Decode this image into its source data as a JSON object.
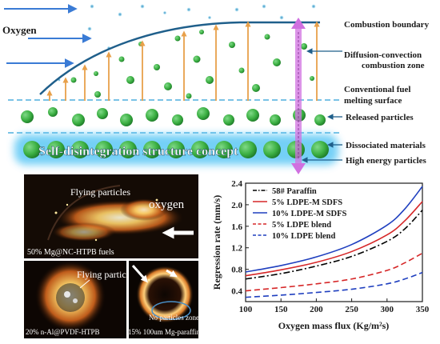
{
  "top_diagram": {
    "oxygen_label": "Oxygen",
    "labels": {
      "combustion_boundary": "Combustion boundary",
      "diffusion_zone_line1": "Diffusion-convection",
      "diffusion_zone_line2": "combustion zone",
      "melting_surface_line1": "Conventional fuel",
      "melting_surface_line2": "melting surface",
      "released_particles": "Released particles",
      "dissociated_materials": "Dissociated materials",
      "high_energy_particles": "High energy particles"
    },
    "concept_text": "Self-disintegration structure concept",
    "colors": {
      "particle_green": "#3cb043",
      "arrow_orange": "#e8a04a",
      "boundary_blue": "#1f5f8b",
      "oxygen_arrow": "#3a7bd5",
      "glow_cyan": "#5bc8f5",
      "purple_arrow": "#d070e0"
    }
  },
  "photos": {
    "main": {
      "flying_label": "Flying particles",
      "oxygen_label": "oxygen",
      "caption": "50% Mg@NC-HTPB fuels"
    },
    "left": {
      "flying_label": "Flying particles",
      "caption": "20% n-Al@PVDF-HTPB"
    },
    "right": {
      "no_particles_label_line1": "No particles zone",
      "caption": "15% 100um Mg-paraffin"
    }
  },
  "chart_data": {
    "type": "line",
    "xlabel": "Oxygen mass flux (Kg/m²s)",
    "ylabel": "Regression rate (mm/s)",
    "xlim": [
      100,
      350
    ],
    "ylim": [
      0.2,
      2.4
    ],
    "xticks": [
      "100",
      "150",
      "200",
      "250",
      "300",
      "350"
    ],
    "yticks": [
      "0.4",
      "0.8",
      "1.2",
      "1.6",
      "2.0",
      "2.4"
    ],
    "legend_position": "top-left",
    "grid": false,
    "series": [
      {
        "name": "58# Paraffin",
        "color": "#000000",
        "dash": "dashdot",
        "x": [
          100,
          150,
          200,
          250,
          300,
          325,
          350
        ],
        "y": [
          0.62,
          0.72,
          0.86,
          1.04,
          1.32,
          1.55,
          1.9
        ]
      },
      {
        "name": "5% LDPE-M SDFS",
        "color": "#d62728",
        "dash": "solid",
        "x": [
          100,
          150,
          200,
          250,
          300,
          325,
          350
        ],
        "y": [
          0.68,
          0.79,
          0.93,
          1.13,
          1.44,
          1.7,
          2.06
        ]
      },
      {
        "name": "10% LDPE-M SDFS",
        "color": "#1f3fbf",
        "dash": "solid",
        "x": [
          100,
          150,
          200,
          250,
          300,
          325,
          350
        ],
        "y": [
          0.75,
          0.87,
          1.03,
          1.26,
          1.62,
          1.92,
          2.34
        ]
      },
      {
        "name": "5% LDPE blend",
        "color": "#d62728",
        "dash": "dashed",
        "x": [
          100,
          150,
          200,
          250,
          300,
          325,
          350
        ],
        "y": [
          0.4,
          0.46,
          0.53,
          0.62,
          0.78,
          0.92,
          1.1
        ]
      },
      {
        "name": "10% LDPE blend",
        "color": "#1f3fbf",
        "dash": "dashed",
        "x": [
          100,
          150,
          200,
          250,
          300,
          325,
          350
        ],
        "y": [
          0.28,
          0.32,
          0.37,
          0.43,
          0.53,
          0.62,
          0.74
        ]
      }
    ]
  }
}
